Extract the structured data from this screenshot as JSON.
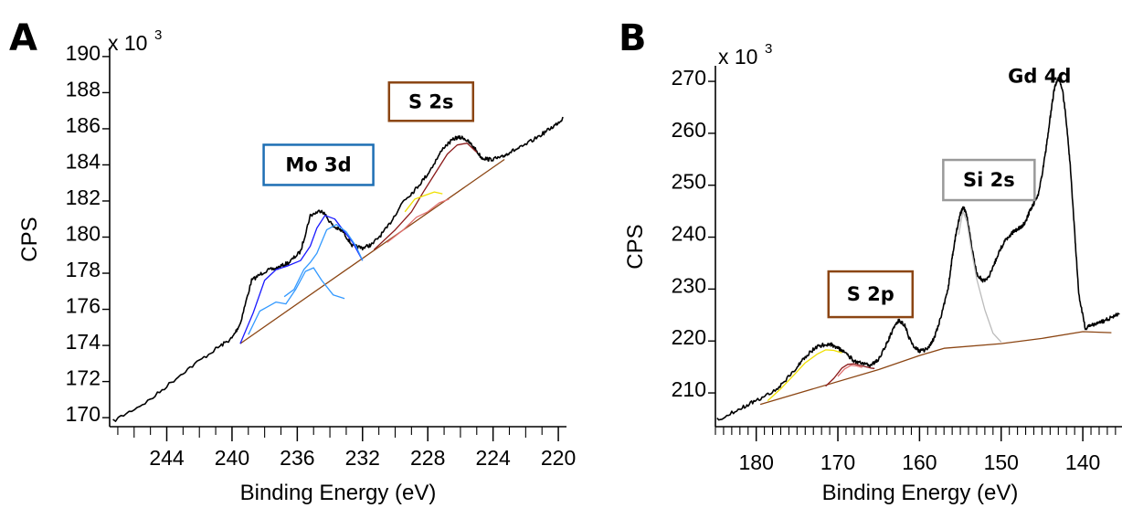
{
  "colors": {
    "raw": "#000000",
    "background": "#8b4513",
    "mo_dark": "#1a1aff",
    "mo_light": "#3399ff",
    "s_dark": "#8b1a1a",
    "s_light": "#e07070",
    "yellow": "#f0e000",
    "si": "#bbbbbb",
    "box_mo": "#1e6fb4",
    "box_s": "#8b4513",
    "box_si": "#999999"
  },
  "chart_data": [
    {
      "type": "line",
      "panel_label": "A",
      "xlabel": "Binding Energy (eV)",
      "ylabel": "CPS",
      "y_multiplier": "x 10",
      "y_multiplier_exp": "3",
      "x_ticks": [
        244,
        240,
        236,
        232,
        228,
        224,
        220
      ],
      "x_tick_labels": [
        "244",
        "240",
        "236",
        "232",
        "228",
        "224",
        "220"
      ],
      "y_ticks": [
        170,
        172,
        174,
        176,
        178,
        180,
        182,
        184,
        186,
        188,
        190
      ],
      "y_tick_labels": [
        "170",
        "172",
        "174",
        "176",
        "178",
        "180",
        "182",
        "184",
        "186",
        "188",
        "190"
      ],
      "xlim": [
        247.5,
        219.5
      ],
      "ylim": [
        169.5,
        190.5
      ],
      "x_reversed": true,
      "grid": false,
      "annotations": [
        {
          "text": "Mo 3d",
          "x": 234.7,
          "y": 184,
          "box_color": "#1e6fb4"
        },
        {
          "text": "S 2s",
          "x": 227.8,
          "y": 187.5,
          "box_color": "#8b4513"
        }
      ],
      "series": [
        {
          "color": "#000000",
          "noisy": true,
          "x": [
            247.3,
            245,
            243,
            241,
            240,
            239.5,
            238.8,
            238,
            237.2,
            236.5,
            235.8,
            235.2,
            234.5,
            233.8,
            233.2,
            232.6,
            232,
            231.4,
            230.5,
            229.5,
            228.8,
            228,
            227,
            226.3,
            225.8,
            225.3,
            224.7,
            224.2,
            223.5,
            223,
            222.2,
            221,
            220.2,
            219.7
          ],
          "y": [
            169.8,
            171,
            172.5,
            173.8,
            174.4,
            175.2,
            177.6,
            178.1,
            178.3,
            178.6,
            179.2,
            181.2,
            181.5,
            180.6,
            180.3,
            179.5,
            179.4,
            179.6,
            180.5,
            182,
            182.6,
            183.5,
            185,
            185.5,
            185.5,
            185.1,
            184.4,
            184.3,
            184.4,
            184.7,
            185,
            185.7,
            186.2,
            186.6
          ]
        },
        {
          "color": "#8b4513",
          "x": [
            239.5,
            223.3
          ],
          "y": [
            174.1,
            184.3
          ]
        },
        {
          "color": "#1a1aff",
          "x": [
            239.5,
            238.7,
            238,
            237.3,
            236.6,
            235.8,
            235.2,
            234.8,
            234.3,
            233.7,
            233.2,
            232.6,
            232
          ],
          "y": [
            174.1,
            175.8,
            177.6,
            178.2,
            178.4,
            178.7,
            179.5,
            180.5,
            181.2,
            181,
            180.4,
            179.7,
            178.7
          ]
        },
        {
          "color": "#3399ff",
          "x": [
            239,
            238.3,
            237.9,
            237.3,
            236.7,
            236.1,
            235.5,
            235,
            234.5,
            233.8,
            233.1
          ],
          "y": [
            174.6,
            175.9,
            176.1,
            176.4,
            176.3,
            177.1,
            178.1,
            178.3,
            177.6,
            176.8,
            176.6
          ]
        },
        {
          "color": "#3399ff",
          "x": [
            236.8,
            236.2,
            235.6,
            235.2,
            234.8,
            234.2,
            233.6,
            233,
            232.4,
            232
          ],
          "y": [
            176.7,
            177.1,
            178.2,
            178.6,
            179.1,
            180.4,
            180.7,
            180.3,
            179.5,
            178.7
          ]
        },
        {
          "color": "#8b1a1a",
          "x": [
            231.3,
            230,
            229,
            228.2,
            227.5,
            226.8,
            226.2,
            225.6,
            225
          ],
          "y": [
            179.3,
            180.4,
            181.4,
            182.6,
            183.6,
            184.6,
            185.1,
            185.2,
            184.7
          ]
        },
        {
          "color": "#e07070",
          "x": [
            230.5,
            229.5,
            228.7,
            228,
            227.3,
            226.7
          ],
          "y": [
            179.7,
            180.4,
            181.1,
            181.4,
            181.9,
            182.1
          ]
        },
        {
          "color": "#f0e000",
          "x": [
            229.4,
            228.8,
            228.2,
            227.6,
            227.1
          ],
          "y": [
            181.4,
            182.1,
            182.3,
            182.5,
            182.4
          ]
        }
      ]
    },
    {
      "type": "line",
      "panel_label": "B",
      "xlabel": "Binding Energy (eV)",
      "ylabel": "CPS",
      "y_multiplier": "x 10",
      "y_multiplier_exp": "3",
      "x_ticks": [
        180,
        170,
        160,
        150,
        140
      ],
      "x_tick_labels": [
        "180",
        "170",
        "160",
        "150",
        "140"
      ],
      "y_ticks": [
        210,
        220,
        230,
        240,
        250,
        260,
        270
      ],
      "y_tick_labels": [
        "210",
        "220",
        "230",
        "240",
        "250",
        "260",
        "270"
      ],
      "xlim": [
        185,
        135.2
      ],
      "ylim": [
        203.5,
        273
      ],
      "x_reversed": true,
      "grid": false,
      "annotations": [
        {
          "text": "S 2p",
          "x": 166,
          "y": 229,
          "box_color": "#8b4513"
        },
        {
          "text": "Si 2s",
          "x": 151.5,
          "y": 251,
          "box_color": "#999999"
        },
        {
          "text": "Gd 4d",
          "x": 145.3,
          "y": 271,
          "box_color": null
        }
      ],
      "series": [
        {
          "color": "#000000",
          "noisy": true,
          "x": [
            184.8,
            182,
            180,
            177.5,
            175.5,
            174,
            172.5,
            171,
            170,
            169,
            168,
            167,
            166,
            165,
            164,
            163.2,
            162.5,
            161.8,
            161,
            160,
            159,
            158.2,
            157.5,
            156.5,
            156,
            155.5,
            155,
            154.6,
            154.2,
            153.6,
            153,
            152.2,
            151.5,
            150.8,
            150,
            149.2,
            148.5,
            148,
            147.5,
            147,
            146.5,
            146,
            145.5,
            145,
            144.5,
            144,
            143.5,
            143,
            142.5,
            142,
            141.5,
            141,
            140.5,
            139.7,
            139,
            138.2,
            137.5,
            136.5,
            135.5
          ],
          "y": [
            204.8,
            207,
            208.5,
            210.7,
            214,
            217,
            219,
            219.5,
            218.7,
            217.5,
            216.2,
            215.6,
            215.3,
            216.5,
            219.5,
            222.5,
            224,
            223,
            219.5,
            218,
            218.5,
            220.5,
            224,
            230,
            236,
            241,
            244.5,
            245.8,
            244,
            238,
            233,
            231.5,
            232.5,
            235,
            238,
            240,
            241,
            241.5,
            242,
            243,
            245,
            246.5,
            248,
            252,
            257,
            263,
            268.5,
            270.6,
            268.7,
            262,
            253,
            241,
            229,
            222.5,
            223,
            223.5,
            223.8,
            224.5,
            225.3
          ]
        },
        {
          "color": "#8b4513",
          "x": [
            179.5,
            165,
            160,
            157,
            150,
            145,
            140,
            136.5
          ],
          "y": [
            207.8,
            214.5,
            217.2,
            218.6,
            219.5,
            220.5,
            221.8,
            221.6
          ]
        },
        {
          "color": "#bbbbbb",
          "x": [
            155.2,
            154.7,
            154.2,
            153.7,
            153,
            152,
            151,
            150
          ],
          "y": [
            240.5,
            245,
            243,
            238,
            232,
            226,
            221.5,
            219.8
          ]
        },
        {
          "color": "#8b1a1a",
          "x": [
            171.5,
            170.5,
            169.5,
            168.8,
            168,
            167,
            166,
            165.5
          ],
          "y": [
            211.3,
            212.8,
            214.8,
            215.5,
            215.6,
            215.2,
            214.8,
            214.7
          ]
        },
        {
          "color": "#e07070",
          "x": [
            170,
            169.2,
            168.4,
            167.7,
            167
          ],
          "y": [
            213.2,
            214.6,
            215.3,
            215.2,
            214.9
          ]
        },
        {
          "color": "#f0e000",
          "x": [
            178.6,
            177,
            175.3,
            174,
            172.5,
            171.5,
            170.5,
            169.5
          ],
          "y": [
            208.5,
            210.8,
            213.6,
            215.8,
            217.5,
            218.3,
            218.2,
            217.7
          ]
        }
      ]
    }
  ]
}
